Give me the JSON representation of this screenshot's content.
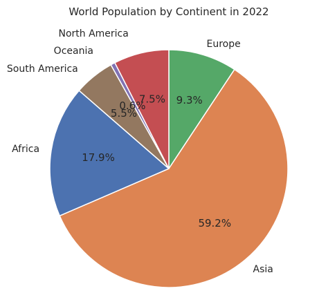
{
  "chart_data": {
    "type": "pie",
    "title": "World Population by Continent in 2022",
    "slices": [
      {
        "label": "Europe",
        "value": 9.3,
        "pct_text": "9.3%",
        "color": "#55a868"
      },
      {
        "label": "Asia",
        "value": 59.2,
        "pct_text": "59.2%",
        "color": "#dd8452"
      },
      {
        "label": "Africa",
        "value": 17.9,
        "pct_text": "17.9%",
        "color": "#4c72b0"
      },
      {
        "label": "South America",
        "value": 5.5,
        "pct_text": "5.5%",
        "color": "#937860"
      },
      {
        "label": "Oceania",
        "value": 0.6,
        "pct_text": "0.6%",
        "color": "#8172b3"
      },
      {
        "label": "North America",
        "value": 7.5,
        "pct_text": "7.5%",
        "color": "#c44e52"
      }
    ],
    "start_angle_deg": 90,
    "direction": "clockwise",
    "legend": "none"
  }
}
